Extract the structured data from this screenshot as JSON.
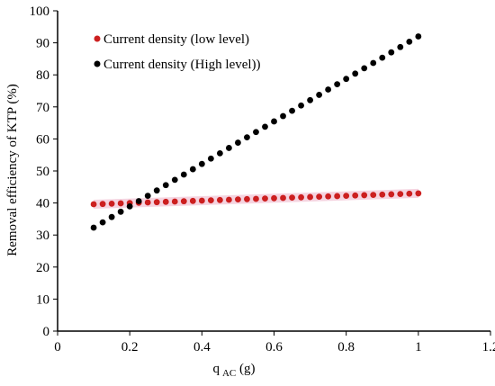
{
  "chart_data": {
    "type": "scatter",
    "xlabel": "q",
    "xlabel_subscript": "AC",
    "xlabel_suffix": " (g)",
    "ylabel": "Removal efficiency of KTP (%)",
    "xlim": [
      0,
      1.2
    ],
    "ylim": [
      0,
      100
    ],
    "xticks": [
      "0",
      "0.2",
      "0.4",
      "0.6",
      "0.8",
      "1",
      "1.2"
    ],
    "yticks": [
      "0",
      "10",
      "20",
      "30",
      "40",
      "50",
      "60",
      "70",
      "80",
      "90",
      "100"
    ],
    "grid": false,
    "legend_position": "top-left",
    "series": [
      {
        "name": "Current density (low level)",
        "color": "#cc1f1f",
        "band_color": "#f2c6d6",
        "x_start": 0.1,
        "x_end": 1.0,
        "points": 37,
        "y_start": 39.6,
        "y_end": 43.0
      },
      {
        "name": "Current density (High level))",
        "color": "#000000",
        "x_start": 0.1,
        "x_end": 1.0,
        "points": 37,
        "y_start": 32.3,
        "y_end": 92.0
      }
    ]
  }
}
